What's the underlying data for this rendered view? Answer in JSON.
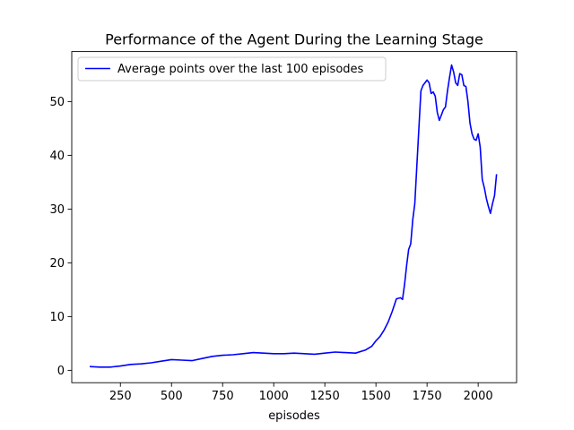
{
  "chart_data": {
    "type": "line",
    "title": "Performance of the Agent During the Learning Stage",
    "xlabel": "episodes",
    "ylabel": "",
    "xlim": [
      12,
      2188
    ],
    "ylim": [
      -2.3,
      59.3
    ],
    "xticks": [
      250,
      500,
      750,
      1000,
      1250,
      1500,
      1750,
      2000
    ],
    "yticks": [
      0,
      10,
      20,
      30,
      40,
      50
    ],
    "grid": false,
    "legend_position": "upper-left",
    "series": [
      {
        "name": "Average points over the last 100 episodes",
        "color": "#0000ff",
        "points": [
          [
            100,
            0.7
          ],
          [
            150,
            0.6
          ],
          [
            200,
            0.6
          ],
          [
            250,
            0.8
          ],
          [
            300,
            1.1
          ],
          [
            350,
            1.2
          ],
          [
            400,
            1.4
          ],
          [
            450,
            1.7
          ],
          [
            500,
            2.0
          ],
          [
            550,
            1.9
          ],
          [
            600,
            1.8
          ],
          [
            650,
            2.2
          ],
          [
            700,
            2.6
          ],
          [
            750,
            2.8
          ],
          [
            800,
            2.9
          ],
          [
            850,
            3.1
          ],
          [
            900,
            3.3
          ],
          [
            950,
            3.2
          ],
          [
            1000,
            3.1
          ],
          [
            1050,
            3.1
          ],
          [
            1100,
            3.2
          ],
          [
            1150,
            3.1
          ],
          [
            1200,
            3.0
          ],
          [
            1250,
            3.2
          ],
          [
            1300,
            3.4
          ],
          [
            1350,
            3.3
          ],
          [
            1400,
            3.2
          ],
          [
            1450,
            3.8
          ],
          [
            1480,
            4.5
          ],
          [
            1500,
            5.5
          ],
          [
            1520,
            6.3
          ],
          [
            1540,
            7.5
          ],
          [
            1560,
            9.0
          ],
          [
            1580,
            11.0
          ],
          [
            1600,
            13.3
          ],
          [
            1620,
            13.5
          ],
          [
            1630,
            13.2
          ],
          [
            1640,
            16.0
          ],
          [
            1650,
            19.5
          ],
          [
            1660,
            22.5
          ],
          [
            1670,
            23.5
          ],
          [
            1680,
            28.0
          ],
          [
            1690,
            31.0
          ],
          [
            1700,
            38.0
          ],
          [
            1710,
            45.0
          ],
          [
            1720,
            52.0
          ],
          [
            1730,
            53.0
          ],
          [
            1740,
            53.5
          ],
          [
            1750,
            54.0
          ],
          [
            1760,
            53.5
          ],
          [
            1770,
            51.5
          ],
          [
            1780,
            51.8
          ],
          [
            1790,
            51.0
          ],
          [
            1800,
            48.0
          ],
          [
            1810,
            46.5
          ],
          [
            1820,
            47.5
          ],
          [
            1830,
            48.5
          ],
          [
            1840,
            49.0
          ],
          [
            1850,
            52.0
          ],
          [
            1860,
            54.5
          ],
          [
            1870,
            56.8
          ],
          [
            1880,
            55.5
          ],
          [
            1890,
            53.5
          ],
          [
            1900,
            53.0
          ],
          [
            1910,
            55.2
          ],
          [
            1920,
            55.0
          ],
          [
            1930,
            53.0
          ],
          [
            1940,
            52.8
          ],
          [
            1950,
            50.0
          ],
          [
            1960,
            46.0
          ],
          [
            1970,
            44.0
          ],
          [
            1980,
            43.0
          ],
          [
            1990,
            42.8
          ],
          [
            2000,
            44.0
          ],
          [
            2010,
            41.5
          ],
          [
            2020,
            35.5
          ],
          [
            2030,
            34.0
          ],
          [
            2040,
            32.0
          ],
          [
            2050,
            30.5
          ],
          [
            2060,
            29.2
          ],
          [
            2070,
            31.0
          ],
          [
            2080,
            32.5
          ],
          [
            2090,
            36.5
          ]
        ]
      }
    ]
  }
}
